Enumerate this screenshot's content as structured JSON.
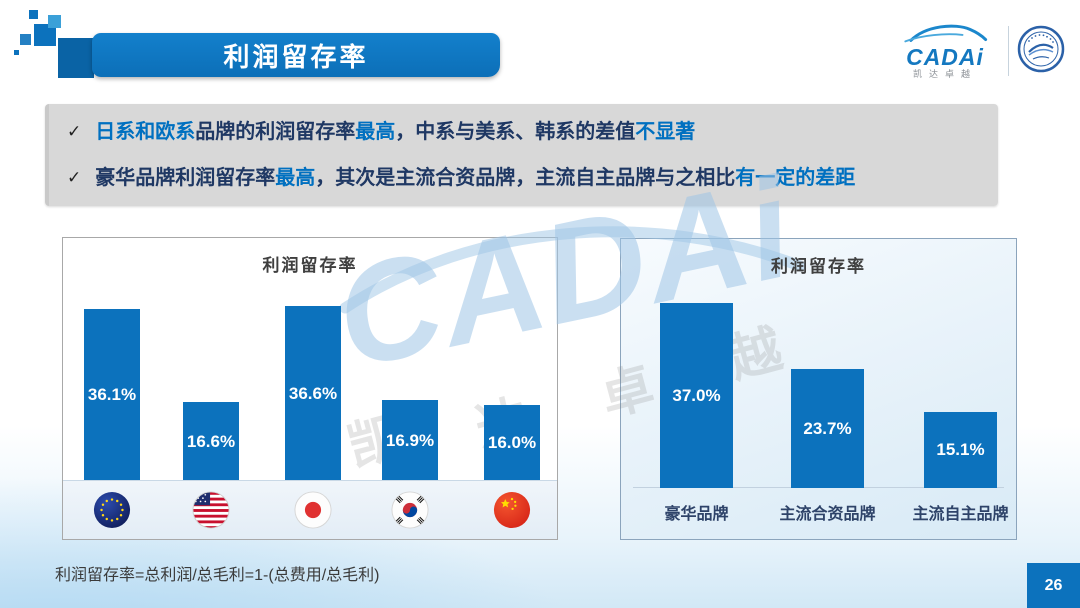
{
  "header": {
    "title": "利润留存率"
  },
  "logo": {
    "brand": "CADAi",
    "subtitle": "凯达卓越"
  },
  "icons": {
    "check": "✓"
  },
  "insights": [
    {
      "segments": [
        {
          "text": "日系和欧系",
          "highlight": true
        },
        {
          "text": "品牌的利润留存率",
          "highlight": false
        },
        {
          "text": "最高",
          "highlight": true
        },
        {
          "text": "，中系与美系、韩系的差值",
          "highlight": false
        },
        {
          "text": "不显著",
          "highlight": true
        }
      ]
    },
    {
      "segments": [
        {
          "text": "豪华品牌利润留存率",
          "highlight": false
        },
        {
          "text": "最高",
          "highlight": true
        },
        {
          "text": "，其次是主流合资品牌，主流自主品牌与之相比",
          "highlight": false
        },
        {
          "text": "有一定的差距",
          "highlight": true
        }
      ]
    }
  ],
  "chart_data": [
    {
      "type": "bar",
      "title": "利润留存率",
      "categories": [
        "欧系",
        "美系",
        "日系",
        "韩系",
        "中系"
      ],
      "category_icons": [
        "eu-flag-icon",
        "us-flag-icon",
        "japan-flag-icon",
        "korea-flag-icon",
        "china-flag-icon"
      ],
      "values": [
        36.1,
        16.6,
        36.6,
        16.9,
        16.0
      ],
      "labels": [
        "36.1%",
        "16.6%",
        "36.6%",
        "16.9%",
        "16.0%"
      ],
      "ylim": [
        0,
        40
      ],
      "grid": false,
      "legend": "none",
      "bar_color": "#0c72bd"
    },
    {
      "type": "bar",
      "title": "利润留存率",
      "categories": [
        "豪华品牌",
        "主流合资品牌",
        "主流自主品牌"
      ],
      "values": [
        37.0,
        23.7,
        15.1
      ],
      "labels": [
        "37.0%",
        "23.7%",
        "15.1%"
      ],
      "ylim": [
        0,
        40
      ],
      "grid": false,
      "legend": "none",
      "bar_color": "#0c72bd"
    }
  ],
  "watermark": {
    "text": "CADAi",
    "chars": [
      "凯",
      "达",
      "卓",
      "越"
    ]
  },
  "footnote": "利润留存率=总利润/总毛利=1-(总费用/总毛利)",
  "page_number": "26",
  "colors": {
    "accent_blue": "#0c72bd",
    "highlight_blue": "#0070c0",
    "dark_navy_text": "#1f3864",
    "insight_box_gray": "#d8d8d8"
  }
}
